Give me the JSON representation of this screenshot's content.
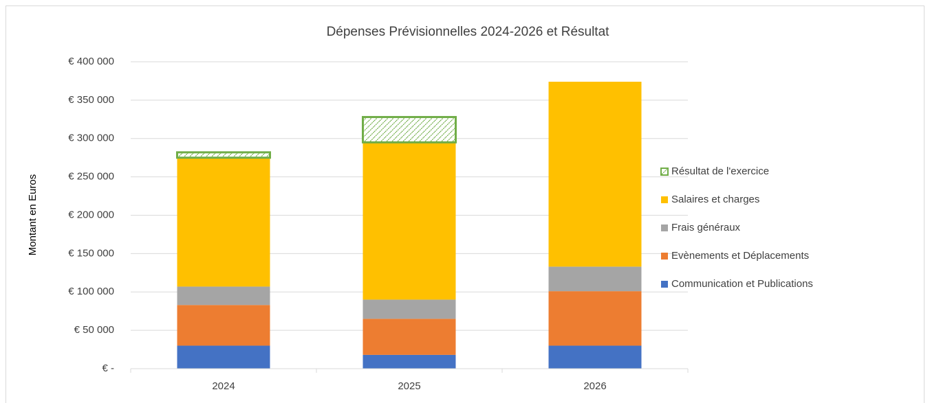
{
  "chart_data": {
    "type": "stacked_bar",
    "title": "Dépenses Prévisionnelles 2024-2026 et Résultat",
    "y_label": "Montant en Euros",
    "categories": [
      "2024",
      "2025",
      "2026"
    ],
    "series": [
      {
        "name": "Communication et Publications",
        "color": "#4472c4",
        "values": [
          30000,
          18000,
          30000
        ]
      },
      {
        "name": "Evènements et Déplacements",
        "color": "#ed7d31",
        "values": [
          53000,
          47000,
          71000
        ]
      },
      {
        "name": "Frais généraux",
        "color": "#a5a5a5",
        "values": [
          24000,
          25000,
          32000
        ]
      },
      {
        "name": "Salaires et charges",
        "color": "#ffc000",
        "values": [
          168000,
          205000,
          241000
        ]
      },
      {
        "name": "Résultat de l'exercice",
        "color": "#70ad47",
        "pattern": "hatch",
        "values": [
          7000,
          33000,
          0
        ]
      }
    ],
    "ylim": [
      0,
      400000
    ],
    "yticks": [
      {
        "value": 0,
        "label": "€ -"
      },
      {
        "value": 50000,
        "label": "€ 50 000"
      },
      {
        "value": 100000,
        "label": "€ 100 000"
      },
      {
        "value": 150000,
        "label": "€ 150 000"
      },
      {
        "value": 200000,
        "label": "€ 200 000"
      },
      {
        "value": 250000,
        "label": "€ 250 000"
      },
      {
        "value": 300000,
        "label": "€ 300 000"
      },
      {
        "value": 350000,
        "label": "€ 350 000"
      },
      {
        "value": 400000,
        "label": "€ 400 000"
      }
    ],
    "grid": true,
    "legend": "right"
  }
}
